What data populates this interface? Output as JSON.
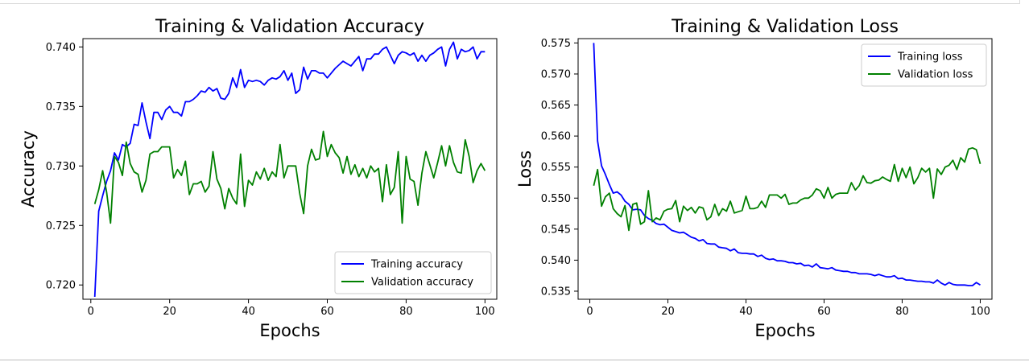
{
  "chart_data": [
    {
      "type": "line",
      "title": "Training & Validation Accuracy",
      "xlabel": "Epochs",
      "ylabel": "Accuracy",
      "xlim": [
        -2,
        103
      ],
      "ylim": [
        0.7188,
        0.7407
      ],
      "xticks": [
        0,
        20,
        40,
        60,
        80,
        100
      ],
      "yticks": [
        0.72,
        0.725,
        0.73,
        0.735,
        0.74
      ],
      "ytick_decimals": 3,
      "legend_position": "lower-right",
      "grid": false,
      "x": [
        1,
        2,
        3,
        4,
        5,
        6,
        7,
        8,
        9,
        10,
        11,
        12,
        13,
        14,
        15,
        16,
        17,
        18,
        19,
        20,
        21,
        22,
        23,
        24,
        25,
        26,
        27,
        28,
        29,
        30,
        31,
        32,
        33,
        34,
        35,
        36,
        37,
        38,
        39,
        40,
        41,
        42,
        43,
        44,
        45,
        46,
        47,
        48,
        49,
        50,
        51,
        52,
        53,
        54,
        55,
        56,
        57,
        58,
        59,
        60,
        61,
        62,
        63,
        64,
        65,
        66,
        67,
        68,
        69,
        70,
        71,
        72,
        73,
        74,
        75,
        76,
        77,
        78,
        79,
        80,
        81,
        82,
        83,
        84,
        85,
        86,
        87,
        88,
        89,
        90,
        91,
        92,
        93,
        94,
        95,
        96,
        97,
        98,
        99,
        100
      ],
      "series": [
        {
          "name": "Training accuracy",
          "color": "#0000ff",
          "values": [
            0.719,
            0.7262,
            0.7275,
            0.7287,
            0.7296,
            0.7311,
            0.7305,
            0.7318,
            0.7316,
            0.7319,
            0.7335,
            0.7334,
            0.7353,
            0.7337,
            0.7323,
            0.7345,
            0.7345,
            0.7339,
            0.7347,
            0.735,
            0.7345,
            0.7345,
            0.7342,
            0.7354,
            0.7354,
            0.7356,
            0.7359,
            0.7363,
            0.7362,
            0.7366,
            0.7363,
            0.7365,
            0.7357,
            0.7356,
            0.7361,
            0.7374,
            0.7366,
            0.7381,
            0.7366,
            0.7372,
            0.7371,
            0.7372,
            0.7371,
            0.7368,
            0.7372,
            0.7374,
            0.7373,
            0.7375,
            0.738,
            0.7372,
            0.7378,
            0.7361,
            0.7364,
            0.7383,
            0.7373,
            0.738,
            0.738,
            0.7378,
            0.7378,
            0.7374,
            0.7378,
            0.7382,
            0.7385,
            0.7388,
            0.7386,
            0.7384,
            0.7388,
            0.7392,
            0.738,
            0.739,
            0.739,
            0.7394,
            0.7394,
            0.7398,
            0.74,
            0.7393,
            0.7386,
            0.7393,
            0.7396,
            0.7395,
            0.7393,
            0.7395,
            0.7388,
            0.7393,
            0.7388,
            0.7393,
            0.7395,
            0.7398,
            0.74,
            0.7384,
            0.7398,
            0.7404,
            0.739,
            0.7398,
            0.7396,
            0.7397,
            0.74,
            0.739,
            0.7396,
            0.7396
          ]
        },
        {
          "name": "Validation accuracy",
          "color": "#008000",
          "values": [
            0.7268,
            0.728,
            0.7296,
            0.7278,
            0.7252,
            0.7308,
            0.7303,
            0.7292,
            0.732,
            0.7302,
            0.7295,
            0.7293,
            0.7278,
            0.7288,
            0.731,
            0.7312,
            0.7312,
            0.7316,
            0.7316,
            0.7316,
            0.729,
            0.7297,
            0.7292,
            0.7304,
            0.7276,
            0.7285,
            0.7285,
            0.7287,
            0.7278,
            0.7283,
            0.7312,
            0.7289,
            0.7281,
            0.7264,
            0.7281,
            0.7273,
            0.7268,
            0.731,
            0.7266,
            0.7288,
            0.7284,
            0.7295,
            0.7289,
            0.7298,
            0.7288,
            0.7295,
            0.7291,
            0.7318,
            0.729,
            0.73,
            0.73,
            0.73,
            0.7277,
            0.726,
            0.73,
            0.7314,
            0.7305,
            0.7306,
            0.7329,
            0.7308,
            0.7318,
            0.7311,
            0.7307,
            0.7294,
            0.7308,
            0.7293,
            0.7301,
            0.7291,
            0.7298,
            0.729,
            0.73,
            0.7295,
            0.7298,
            0.727,
            0.7301,
            0.7276,
            0.7282,
            0.7312,
            0.7252,
            0.7308,
            0.7289,
            0.7287,
            0.7267,
            0.7294,
            0.7312,
            0.7301,
            0.729,
            0.7303,
            0.7317,
            0.73,
            0.7317,
            0.7303,
            0.7295,
            0.7294,
            0.7322,
            0.7308,
            0.7286,
            0.7296,
            0.7302,
            0.7296
          ]
        }
      ]
    },
    {
      "type": "line",
      "title": "Training & Validation Loss",
      "xlabel": "Epochs",
      "ylabel": "Loss",
      "xlim": [
        -3,
        103
      ],
      "ylim": [
        0.5337,
        0.5757
      ],
      "xticks": [
        0,
        20,
        40,
        60,
        80,
        100
      ],
      "yticks": [
        0.535,
        0.54,
        0.545,
        0.55,
        0.555,
        0.56,
        0.565,
        0.57,
        0.575
      ],
      "ytick_decimals": 3,
      "legend_position": "top-right",
      "grid": false,
      "x": [
        1,
        2,
        3,
        4,
        5,
        6,
        7,
        8,
        9,
        10,
        11,
        12,
        13,
        14,
        15,
        16,
        17,
        18,
        19,
        20,
        21,
        22,
        23,
        24,
        25,
        26,
        27,
        28,
        29,
        30,
        31,
        32,
        33,
        34,
        35,
        36,
        37,
        38,
        39,
        40,
        41,
        42,
        43,
        44,
        45,
        46,
        47,
        48,
        49,
        50,
        51,
        52,
        53,
        54,
        55,
        56,
        57,
        58,
        59,
        60,
        61,
        62,
        63,
        64,
        65,
        66,
        67,
        68,
        69,
        70,
        71,
        72,
        73,
        74,
        75,
        76,
        77,
        78,
        79,
        80,
        81,
        82,
        83,
        84,
        85,
        86,
        87,
        88,
        89,
        90,
        91,
        92,
        93,
        94,
        95,
        96,
        97,
        98,
        99,
        100
      ],
      "series": [
        {
          "name": "Training loss",
          "color": "#0000ff",
          "values": [
            0.575,
            0.5592,
            0.5552,
            0.5538,
            0.5522,
            0.5508,
            0.551,
            0.5505,
            0.5495,
            0.549,
            0.5481,
            0.5482,
            0.5481,
            0.5472,
            0.5467,
            0.5464,
            0.5459,
            0.5457,
            0.5458,
            0.5453,
            0.5448,
            0.5446,
            0.5444,
            0.5445,
            0.5441,
            0.5437,
            0.5435,
            0.5431,
            0.5433,
            0.5427,
            0.5426,
            0.5426,
            0.5421,
            0.542,
            0.5419,
            0.5415,
            0.5418,
            0.5412,
            0.5411,
            0.5411,
            0.541,
            0.541,
            0.5406,
            0.5408,
            0.5403,
            0.5401,
            0.5402,
            0.5399,
            0.5399,
            0.5398,
            0.5396,
            0.5396,
            0.5394,
            0.5395,
            0.5391,
            0.5392,
            0.5389,
            0.5394,
            0.5388,
            0.5387,
            0.5386,
            0.5388,
            0.5384,
            0.5383,
            0.5382,
            0.5382,
            0.538,
            0.538,
            0.5378,
            0.5378,
            0.5378,
            0.5377,
            0.5375,
            0.5377,
            0.5375,
            0.5373,
            0.5373,
            0.5375,
            0.537,
            0.5371,
            0.5368,
            0.5368,
            0.5367,
            0.5366,
            0.5366,
            0.5365,
            0.5365,
            0.5363,
            0.5368,
            0.5363,
            0.536,
            0.5364,
            0.5361,
            0.536,
            0.536,
            0.536,
            0.5359,
            0.5359,
            0.5364,
            0.536
          ]
        },
        {
          "name": "Validation loss",
          "color": "#008000",
          "values": [
            0.552,
            0.5546,
            0.5487,
            0.5502,
            0.5508,
            0.5483,
            0.5475,
            0.547,
            0.5488,
            0.5448,
            0.549,
            0.5492,
            0.5458,
            0.5462,
            0.5512,
            0.5462,
            0.5468,
            0.5465,
            0.5479,
            0.5482,
            0.5483,
            0.5496,
            0.5462,
            0.5487,
            0.548,
            0.5485,
            0.5476,
            0.5486,
            0.5484,
            0.5465,
            0.547,
            0.549,
            0.5472,
            0.5483,
            0.5479,
            0.5495,
            0.5476,
            0.5478,
            0.548,
            0.5503,
            0.5483,
            0.5483,
            0.5485,
            0.5495,
            0.5485,
            0.5505,
            0.5505,
            0.5505,
            0.55,
            0.5506,
            0.549,
            0.5492,
            0.5492,
            0.5497,
            0.55,
            0.55,
            0.5505,
            0.5515,
            0.5512,
            0.55,
            0.5517,
            0.55,
            0.5506,
            0.5508,
            0.5508,
            0.5508,
            0.5525,
            0.5513,
            0.552,
            0.5536,
            0.5525,
            0.5524,
            0.5528,
            0.5529,
            0.5534,
            0.553,
            0.5527,
            0.5554,
            0.5527,
            0.5548,
            0.5533,
            0.555,
            0.5523,
            0.5533,
            0.5548,
            0.5542,
            0.5548,
            0.55,
            0.5547,
            0.5538,
            0.555,
            0.5553,
            0.5561,
            0.5546,
            0.5565,
            0.5558,
            0.5579,
            0.5581,
            0.5578,
            0.5555
          ]
        }
      ]
    }
  ]
}
